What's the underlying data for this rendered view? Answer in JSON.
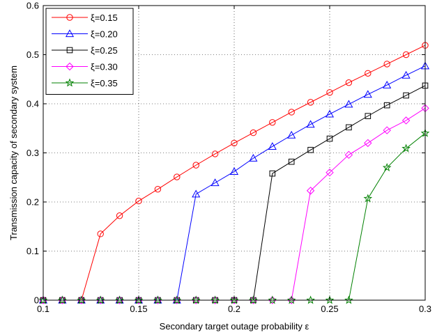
{
  "chart_data": {
    "type": "line",
    "title": "",
    "xlabel": "Secondary target outage probability ε",
    "ylabel": "Transmission capacity of secondary system",
    "xlim": [
      0.1,
      0.3
    ],
    "ylim": [
      0,
      0.6
    ],
    "x_ticks": [
      0.1,
      0.15,
      0.2,
      0.25,
      0.3
    ],
    "x_tick_labels": [
      "0.1",
      "0.15",
      "0.2",
      "0.25",
      "0.3"
    ],
    "y_ticks": [
      0,
      0.1,
      0.2,
      0.3,
      0.4,
      0.5,
      0.6
    ],
    "y_tick_labels": [
      "0",
      "0.1",
      "0.2",
      "0.3",
      "0.4",
      "0.5",
      "0.6"
    ],
    "grid": true,
    "legend_position": "top-left",
    "x": [
      0.1,
      0.11,
      0.12,
      0.13,
      0.14,
      0.15,
      0.16,
      0.17,
      0.18,
      0.19,
      0.2,
      0.21,
      0.22,
      0.23,
      0.24,
      0.25,
      0.26,
      0.27,
      0.28,
      0.29,
      0.3
    ],
    "series": [
      {
        "name": "ξ=0.15",
        "color": "#ff0000",
        "marker": "circle",
        "values": [
          0,
          0,
          0,
          0.135,
          0.172,
          0.202,
          0.226,
          0.251,
          0.275,
          0.298,
          0.32,
          0.341,
          0.362,
          0.383,
          0.403,
          0.423,
          0.443,
          0.462,
          0.481,
          0.5,
          0.519
        ]
      },
      {
        "name": "ξ=0.20",
        "color": "#0000ff",
        "marker": "triangle",
        "values": [
          0,
          0,
          0,
          0,
          0,
          0,
          0,
          0,
          0.216,
          0.239,
          0.262,
          0.289,
          0.313,
          0.336,
          0.358,
          0.379,
          0.399,
          0.419,
          0.438,
          0.458,
          0.477
        ]
      },
      {
        "name": "ξ=0.25",
        "color": "#000000",
        "marker": "square",
        "values": [
          0,
          0,
          0,
          0,
          0,
          0,
          0,
          0,
          0,
          0,
          0,
          0,
          0.258,
          0.282,
          0.306,
          0.329,
          0.352,
          0.375,
          0.397,
          0.417,
          0.437
        ]
      },
      {
        "name": "ξ=0.30",
        "color": "#ff00ff",
        "marker": "diamond",
        "values": [
          0,
          0,
          0,
          0,
          0,
          0,
          0,
          0,
          0,
          0,
          0,
          0,
          0,
          0,
          0.223,
          0.26,
          0.296,
          0.32,
          0.346,
          0.366,
          0.391
        ]
      },
      {
        "name": "ξ=0.35",
        "color": "#008000",
        "marker": "star",
        "values": [
          0,
          0,
          0,
          0,
          0,
          0,
          0,
          0,
          0,
          0,
          0,
          0,
          0,
          0,
          0,
          0,
          0,
          0.207,
          0.27,
          0.309,
          0.34
        ]
      }
    ]
  }
}
